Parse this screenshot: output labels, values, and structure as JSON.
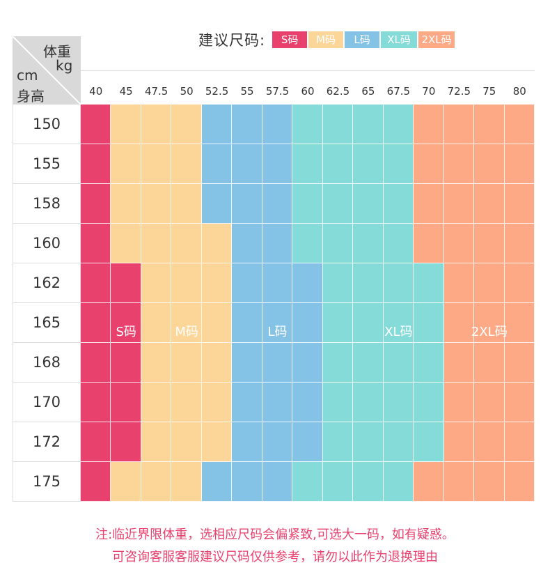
{
  "legend": {
    "title": "建议尺码:",
    "items": [
      {
        "label": "S码",
        "color": "#e8416e"
      },
      {
        "label": "M码",
        "color": "#fbd698"
      },
      {
        "label": "L码",
        "color": "#84c2e6"
      },
      {
        "label": "XL码",
        "color": "#85dbd8"
      },
      {
        "label": "2XL码",
        "color": "#fda986"
      }
    ]
  },
  "corner": {
    "weight_label": "体重",
    "weight_unit": "kg",
    "height_unit": "cm",
    "height_label": "身高"
  },
  "weights": [
    "40",
    "45",
    "47.5",
    "50",
    "52.5",
    "55",
    "57.5",
    "60",
    "62.5",
    "65",
    "67.5",
    "70",
    "72.5",
    "75",
    "80"
  ],
  "heights": [
    "150",
    "155",
    "158",
    "160",
    "162",
    "165",
    "168",
    "170",
    "172",
    "175"
  ],
  "size_chart": [
    [
      "S",
      "M",
      "M",
      "M",
      "L",
      "L",
      "L",
      "XL",
      "XL",
      "XL",
      "XL",
      "2XL",
      "2XL",
      "2XL",
      "2XL"
    ],
    [
      "S",
      "M",
      "M",
      "M",
      "L",
      "L",
      "L",
      "XL",
      "XL",
      "XL",
      "XL",
      "2XL",
      "2XL",
      "2XL",
      "2XL"
    ],
    [
      "S",
      "M",
      "M",
      "M",
      "L",
      "L",
      "L",
      "XL",
      "XL",
      "XL",
      "XL",
      "2XL",
      "2XL",
      "2XL",
      "2XL"
    ],
    [
      "S",
      "M",
      "M",
      "M",
      "M",
      "L",
      "L",
      "XL",
      "XL",
      "XL",
      "XL",
      "2XL",
      "2XL",
      "2XL",
      "2XL"
    ],
    [
      "S",
      "S",
      "M",
      "M",
      "M",
      "L",
      "L",
      "L",
      "XL",
      "XL",
      "XL",
      "XL",
      "2XL",
      "2XL",
      "2XL"
    ],
    [
      "S",
      "S",
      "M",
      "M",
      "M",
      "L",
      "L",
      "L",
      "XL",
      "XL",
      "XL",
      "XL",
      "2XL",
      "2XL",
      "2XL"
    ],
    [
      "S",
      "S",
      "M",
      "M",
      "M",
      "L",
      "L",
      "L",
      "XL",
      "XL",
      "XL",
      "XL",
      "2XL",
      "2XL",
      "2XL"
    ],
    [
      "S",
      "S",
      "M",
      "M",
      "M",
      "L",
      "L",
      "L",
      "XL",
      "XL",
      "XL",
      "XL",
      "2XL",
      "2XL",
      "2XL"
    ],
    [
      "S",
      "S",
      "M",
      "M",
      "M",
      "L",
      "L",
      "L",
      "XL",
      "XL",
      "XL",
      "XL",
      "2XL",
      "2XL",
      "2XL"
    ],
    [
      "S",
      "M",
      "M",
      "M",
      "L",
      "L",
      "L",
      "XL",
      "XL",
      "XL",
      "XL",
      "2XL",
      "2XL",
      "2XL",
      "2XL"
    ]
  ],
  "zone_labels": [
    {
      "label": "S码",
      "col": 1
    },
    {
      "label": "M码",
      "col": 3
    },
    {
      "label": "L码",
      "col": 6
    },
    {
      "label": "XL码",
      "col": 10
    },
    {
      "label": "2XL码",
      "col": 13
    }
  ],
  "note": {
    "line1": "注:临近界限体重，选相应尺码会偏紧致,可选大一码，如有疑惑。",
    "line2": "可咨询客服客服建议尺码仅供参考，请勿以此作为退换理由"
  }
}
